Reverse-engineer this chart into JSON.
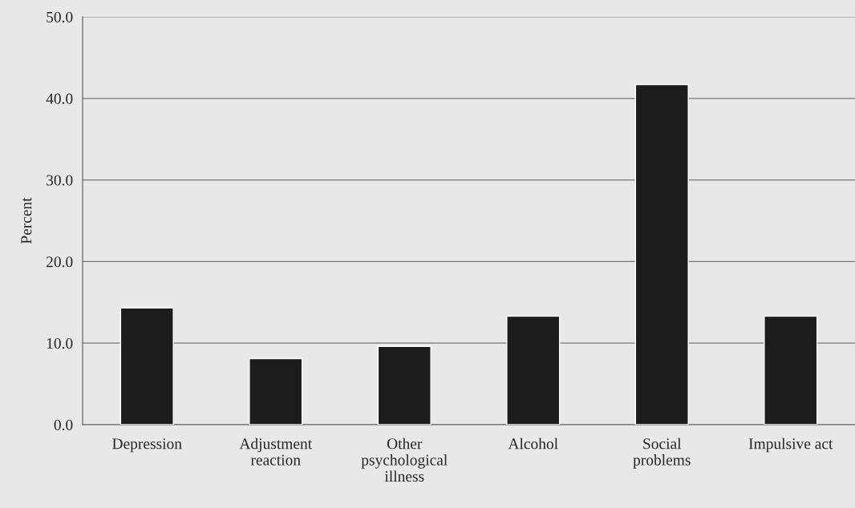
{
  "chart_data": {
    "type": "bar",
    "ylabel": "Percent",
    "categories": [
      "Depression",
      "Adjustment\nreaction",
      "Other\npsychological\nillness",
      "Alcohol",
      "Social\nproblems",
      "Impulsive act"
    ],
    "values": [
      14.3,
      8.1,
      9.6,
      13.3,
      41.7,
      13.3
    ],
    "color": "#1c1c1c",
    "ylim": [
      0,
      50
    ],
    "yticks": [
      {
        "value": 0,
        "label": "0.0"
      },
      {
        "value": 10,
        "label": "10.0"
      },
      {
        "value": 20,
        "label": "20.0"
      },
      {
        "value": 30,
        "label": "30.0"
      },
      {
        "value": 40,
        "label": "40.0"
      },
      {
        "value": 50,
        "label": "50.0"
      }
    ],
    "grid": "y"
  }
}
